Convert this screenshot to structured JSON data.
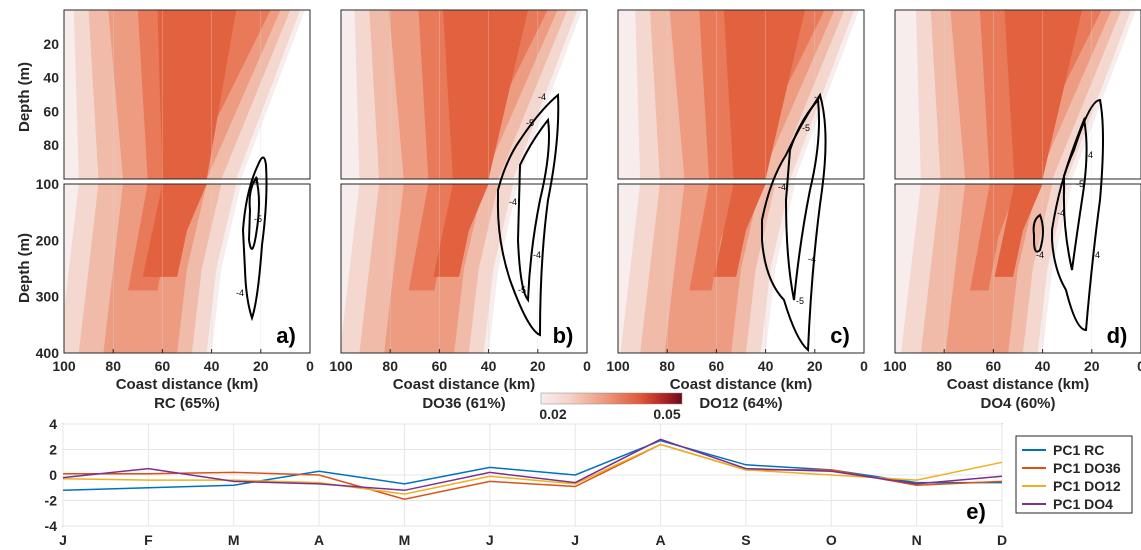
{
  "chart_data": {
    "type": "heatmap",
    "sections": [
      {
        "label": "a)",
        "title": "RC (65%)"
      },
      {
        "label": "b)",
        "title": "DO36 (61%)"
      },
      {
        "label": "c)",
        "title": "DO12 (64%)"
      },
      {
        "label": "d)",
        "title": "DO4 (60%)"
      }
    ],
    "xlabel": "Coast distance (km)",
    "ylabel": "Depth (m)",
    "xlim": [
      100,
      0
    ],
    "xticks": [
      "100",
      "80",
      "60",
      "40",
      "20",
      "0"
    ],
    "top_ylim": [
      0,
      100
    ],
    "top_yticks": [
      "20",
      "40",
      "60",
      "80"
    ],
    "bottom_ylim": [
      100,
      400
    ],
    "bottom_yticks": [
      "100",
      "200",
      "300",
      "400"
    ],
    "contour_labels": [
      "-4",
      "-5"
    ],
    "colorbar": {
      "min_label": "0.02",
      "max_label": "0.05",
      "colors": [
        "#f7eeee",
        "#f5d6cd",
        "#f1b4a2",
        "#ec8d73",
        "#e4633f",
        "#c9432b",
        "#a31d24",
        "#6b0a1b"
      ]
    },
    "timeseries": {
      "label": "e)",
      "categories": [
        "J",
        "F",
        "M",
        "A",
        "M",
        "J",
        "J",
        "A",
        "S",
        "O",
        "N",
        "D"
      ],
      "ylim": [
        -4,
        4
      ],
      "yticks": [
        "4",
        "2",
        "0",
        "-2",
        "-4"
      ],
      "series": [
        {
          "name": "PC1 RC",
          "color": "#0072bd",
          "values": [
            -1.2,
            -1.0,
            -0.8,
            0.3,
            -0.7,
            0.6,
            0.0,
            2.7,
            0.8,
            0.4,
            -0.6,
            -0.6
          ]
        },
        {
          "name": "PC1 DO36",
          "color": "#d95319",
          "values": [
            0.1,
            0.1,
            0.2,
            0.0,
            -1.9,
            -0.5,
            -0.9,
            2.4,
            0.4,
            0.4,
            -0.8,
            -0.5
          ]
        },
        {
          "name": "PC1 DO12",
          "color": "#edb120",
          "values": [
            -0.3,
            -0.4,
            -0.4,
            -0.6,
            -1.5,
            -0.1,
            -0.7,
            2.4,
            0.4,
            0.0,
            -0.4,
            1.0
          ]
        },
        {
          "name": "PC1 DO4",
          "color": "#7e2f8e",
          "values": [
            -0.2,
            0.5,
            -0.5,
            -0.7,
            -1.2,
            0.2,
            -0.6,
            2.8,
            0.5,
            0.3,
            -0.7,
            -0.1
          ]
        }
      ]
    }
  }
}
